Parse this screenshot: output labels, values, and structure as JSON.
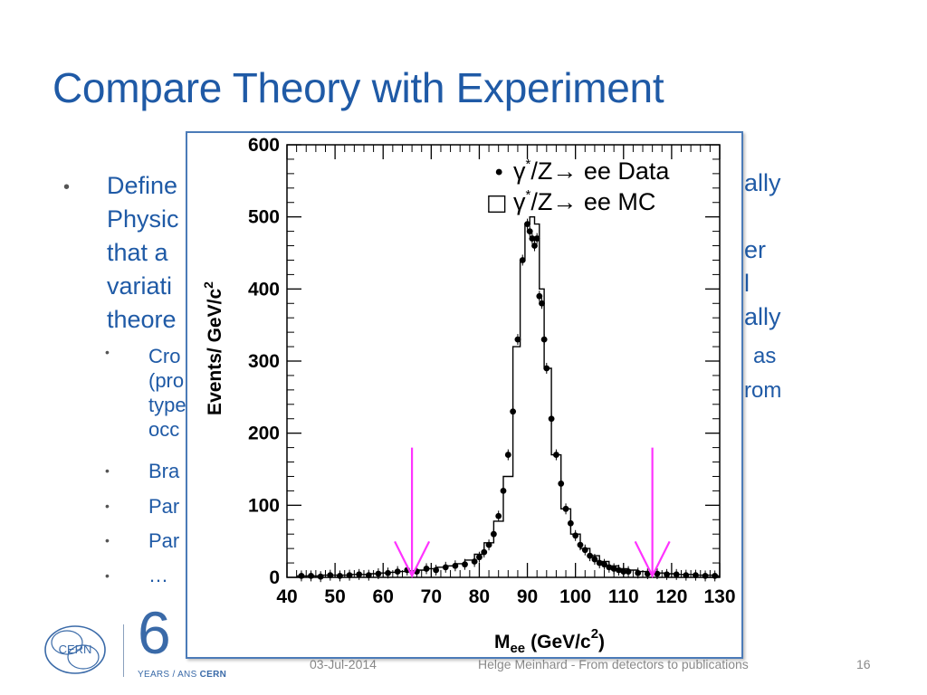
{
  "slide": {
    "title": "Compare Theory with Experiment",
    "bullet1_fragments": [
      "Define",
      "Physic",
      "that a",
      "variati",
      "theore"
    ],
    "right_fragments": [
      "ally",
      "er",
      "l",
      "ally",
      "as",
      "rom"
    ],
    "sub_bullets": [
      "Cro",
      "(pro",
      "type",
      "occ",
      "Bra",
      "Par",
      "Par",
      "…"
    ],
    "footer": {
      "date": "03-Jul-2014",
      "author": "Helge Meinhard - From detectors to publications",
      "page": "16",
      "logo_cern": "CERN",
      "logo_years": "YEARS / ANS",
      "logo_years_brand": "CERN",
      "logo_sixty": "6"
    }
  },
  "chart_data": {
    "type": "scatter",
    "xlabel_main": "M",
    "xlabel_sub": "ee",
    "xlabel_units": "(GeV/c",
    "xlabel_units_sup": "2",
    "xlabel_units_close": ")",
    "ylabel": "Events/ GeV/c",
    "ylabel_sup": "2",
    "xlim": [
      40,
      130
    ],
    "ylim": [
      0,
      600
    ],
    "x_ticks": [
      40,
      50,
      60,
      70,
      80,
      90,
      100,
      110,
      120,
      130
    ],
    "y_ticks": [
      0,
      100,
      200,
      300,
      400,
      500,
      600
    ],
    "legend": [
      {
        "marker": "•",
        "symbol": "γ",
        "sup": "*",
        "text": "/Z→ ee Data"
      },
      {
        "marker": "□",
        "symbol": "γ",
        "sup": "*",
        "text": "/Z→ ee  MC"
      }
    ],
    "cut_arrows_x": [
      66,
      116
    ],
    "series": [
      {
        "name": "γ*/Z→ ee Data",
        "x": [
          43,
          45,
          47,
          49,
          51,
          53,
          55,
          57,
          59,
          61,
          63,
          65,
          67,
          69,
          71,
          73,
          75,
          77,
          79,
          80,
          81,
          82,
          83,
          84,
          85,
          86,
          87,
          88,
          89,
          90,
          90.5,
          91,
          91.5,
          92,
          92.5,
          93,
          93.5,
          94,
          95,
          96,
          97,
          98,
          99,
          100,
          101,
          102,
          103,
          104,
          105,
          106,
          107,
          108,
          109,
          110,
          111,
          113,
          115,
          117,
          119,
          121,
          123,
          125,
          127,
          129
        ],
        "y": [
          2,
          2,
          1,
          3,
          2,
          3,
          4,
          3,
          5,
          6,
          8,
          10,
          8,
          12,
          10,
          14,
          16,
          18,
          22,
          28,
          35,
          45,
          60,
          85,
          120,
          170,
          230,
          330,
          440,
          490,
          480,
          470,
          460,
          470,
          390,
          380,
          330,
          290,
          220,
          170,
          130,
          95,
          75,
          58,
          45,
          38,
          30,
          25,
          20,
          18,
          14,
          12,
          10,
          8,
          8,
          6,
          5,
          5,
          4,
          4,
          3,
          3,
          2,
          2
        ]
      },
      {
        "name": "γ*/Z→ ee MC",
        "x": [
          42,
          44,
          46,
          48,
          50,
          52,
          54,
          56,
          58,
          60,
          62,
          64,
          66,
          68,
          70,
          72,
          74,
          76,
          78,
          80,
          82,
          84,
          86,
          88,
          89,
          90,
          91,
          92,
          93,
          94,
          96,
          98,
          100,
          102,
          104,
          106,
          108,
          110,
          112,
          114,
          116,
          118,
          120,
          122,
          124,
          126,
          128,
          130
        ],
        "y": [
          2,
          2,
          2,
          3,
          3,
          3,
          4,
          4,
          5,
          6,
          7,
          8,
          9,
          10,
          12,
          14,
          16,
          19,
          24,
          32,
          48,
          78,
          140,
          320,
          440,
          490,
          500,
          490,
          400,
          290,
          170,
          95,
          60,
          40,
          30,
          22,
          16,
          12,
          10,
          8,
          7,
          6,
          5,
          4,
          4,
          3,
          3,
          2
        ]
      }
    ]
  }
}
